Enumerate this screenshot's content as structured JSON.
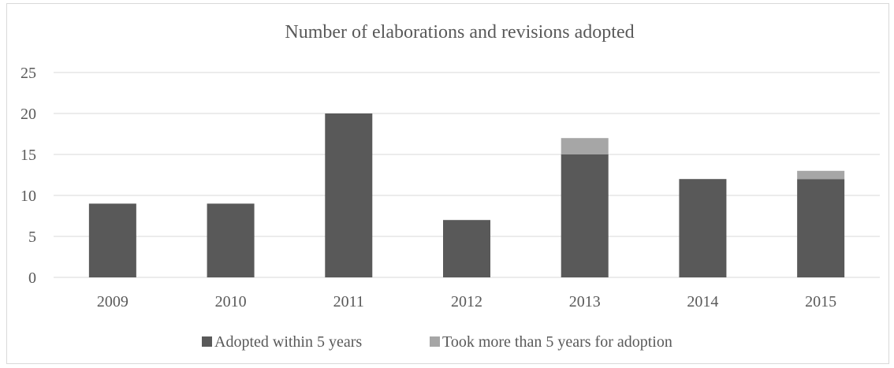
{
  "chart_data": {
    "type": "bar",
    "stacked": true,
    "title": "Number of elaborations and revisions adopted",
    "xlabel": "",
    "ylabel": "",
    "categories": [
      "2009",
      "2010",
      "2011",
      "2012",
      "2013",
      "2014",
      "2015"
    ],
    "series": [
      {
        "name": "Adopted within 5 years",
        "values": [
          9,
          9,
          20,
          7,
          15,
          12,
          12
        ],
        "color": "#595959"
      },
      {
        "name": "Took more than 5 years for adoption",
        "values": [
          0,
          0,
          0,
          0,
          2,
          0,
          1
        ],
        "color": "#a6a6a6"
      }
    ],
    "ylim": [
      0,
      25
    ],
    "yticks": [
      0,
      5,
      10,
      15,
      20,
      25
    ],
    "grid": true,
    "legend": "bottom",
    "colors": {
      "gridline": "#d9d9d9",
      "text": "#595959"
    }
  }
}
